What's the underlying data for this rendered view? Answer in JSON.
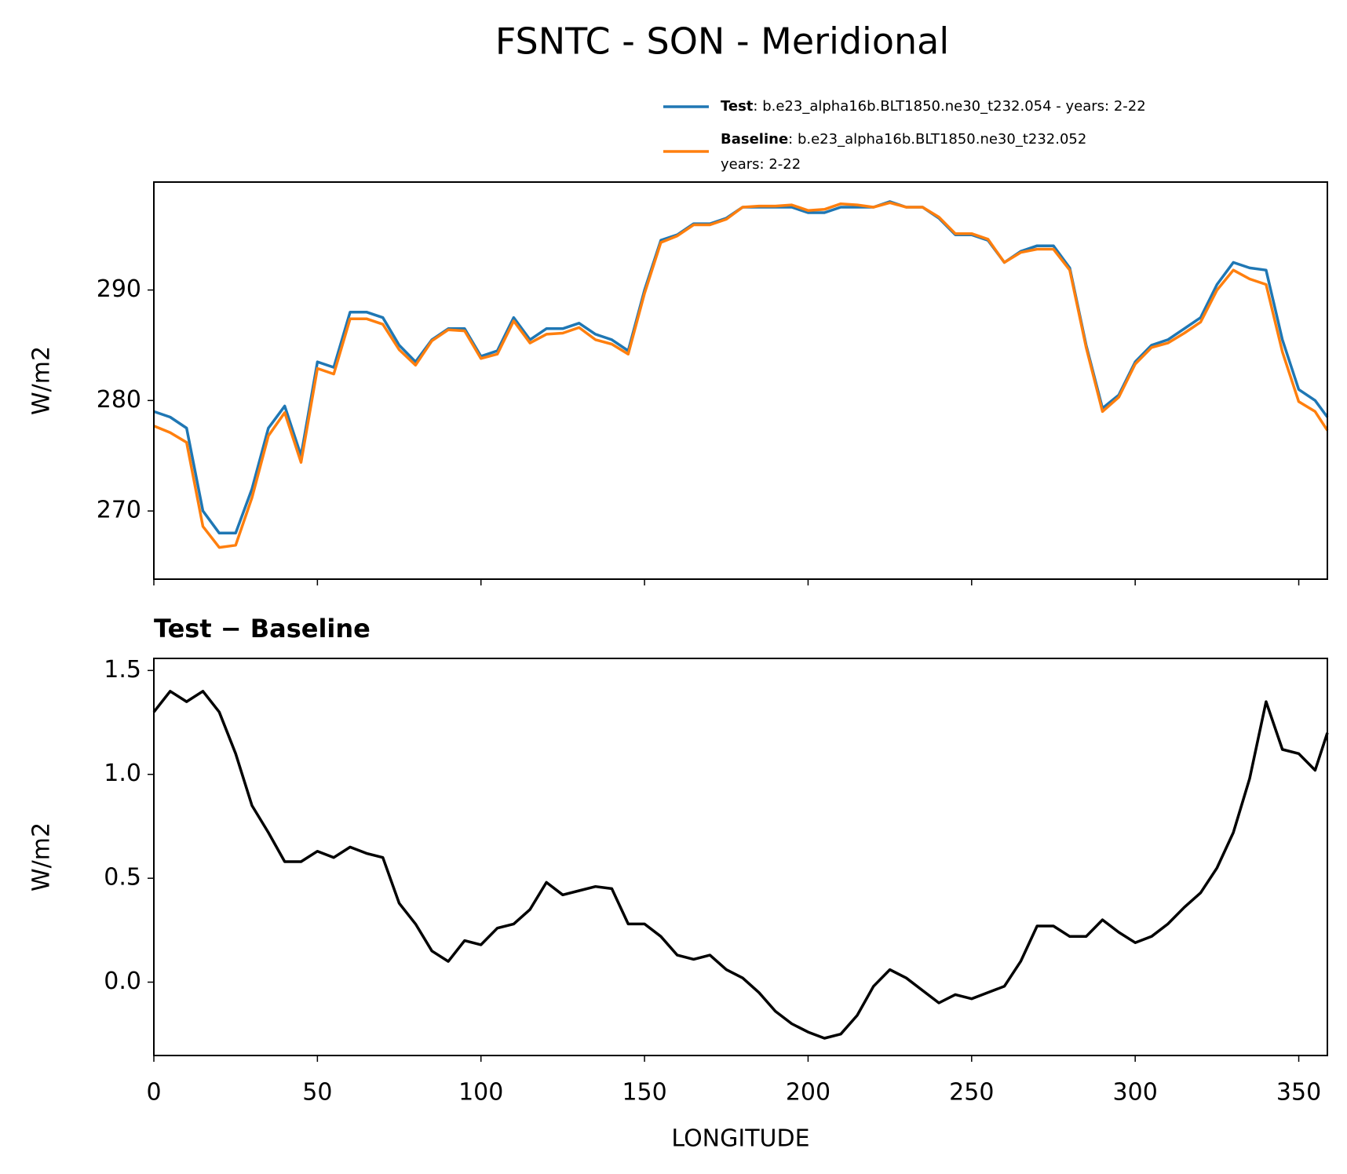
{
  "chart_data": [
    {
      "type": "line",
      "title": "FSNTC - SON - Meridional",
      "ylabel": "W/m2",
      "x": [
        0,
        5,
        10,
        15,
        20,
        25,
        30,
        35,
        40,
        45,
        50,
        55,
        60,
        65,
        70,
        75,
        80,
        85,
        90,
        95,
        100,
        105,
        110,
        115,
        120,
        125,
        130,
        135,
        140,
        145,
        150,
        155,
        160,
        165,
        170,
        175,
        180,
        185,
        190,
        195,
        200,
        205,
        210,
        215,
        220,
        225,
        230,
        235,
        240,
        245,
        250,
        255,
        260,
        265,
        270,
        275,
        280,
        285,
        290,
        295,
        300,
        305,
        310,
        315,
        320,
        325,
        330,
        335,
        340,
        345,
        350,
        355,
        358.75
      ],
      "series": [
        {
          "name": "Test",
          "description": [
            ": b.e23_alpha16b.BLT1850.ne30_t232.054 - years: 2-22"
          ],
          "color": "#1f77b4",
          "values": [
            279.0,
            278.5,
            277.5,
            270,
            268,
            268,
            272,
            277.5,
            279.5,
            275,
            283.5,
            283,
            288,
            288,
            287.5,
            285,
            283.5,
            285.5,
            286.5,
            286.5,
            284,
            284.5,
            287.5,
            285.5,
            286.5,
            286.5,
            287,
            286,
            285.5,
            284.5,
            290,
            294.5,
            295,
            296,
            296,
            296.5,
            297.5,
            297.5,
            297.5,
            297.5,
            297,
            297,
            297.5,
            297.5,
            297.5,
            298,
            297.5,
            297.5,
            296.5,
            295,
            295,
            294.5,
            292.5,
            293.5,
            294,
            294,
            292,
            285,
            279.3,
            280.5,
            283.5,
            285,
            285.5,
            286.5,
            287.5,
            290.5,
            292.5,
            292,
            291.8,
            285.5,
            281,
            280,
            278.5
          ]
        },
        {
          "name": "Baseline",
          "description": [
            ": b.e23_alpha16b.BLT1850.ne30_t232.052",
            "years: 2-22"
          ],
          "color": "#ff7f0e",
          "values": [
            277.7,
            277.1,
            276.2,
            268.6,
            266.7,
            266.9,
            271.2,
            276.8,
            278.9,
            274.4,
            282.9,
            282.4,
            287.4,
            287.4,
            286.9,
            284.6,
            283.2,
            285.4,
            286.4,
            286.3,
            283.8,
            284.2,
            287.2,
            285.2,
            286.0,
            286.1,
            286.6,
            285.5,
            285.1,
            284.2,
            289.7,
            294.3,
            294.9,
            295.9,
            295.9,
            296.4,
            297.5,
            297.6,
            297.6,
            297.7,
            297.2,
            297.3,
            297.8,
            297.7,
            297.5,
            297.9,
            297.5,
            297.5,
            296.6,
            295.1,
            295.1,
            294.6,
            292.5,
            293.4,
            293.7,
            293.7,
            291.8,
            284.8,
            279.0,
            280.3,
            283.3,
            284.8,
            285.2,
            286.1,
            287.1,
            290.0,
            291.8,
            291.0,
            290.5,
            284.4,
            279.9,
            279.0,
            277.3
          ]
        }
      ],
      "xlim": [
        0,
        358.75
      ],
      "xticks": [
        0,
        50,
        100,
        150,
        200,
        250,
        300,
        350
      ],
      "show_xtick_labels": false,
      "ylim": [
        263.83,
        299.77
      ],
      "yticks": [
        270,
        280,
        290
      ]
    },
    {
      "type": "line",
      "subtitle": "Test − Baseline",
      "ylabel": "W/m2",
      "xlabel": "LONGITUDE",
      "x": [
        0,
        5,
        10,
        15,
        20,
        25,
        30,
        35,
        40,
        45,
        50,
        55,
        60,
        65,
        70,
        75,
        80,
        85,
        90,
        95,
        100,
        105,
        110,
        115,
        120,
        125,
        130,
        135,
        140,
        145,
        150,
        155,
        160,
        165,
        170,
        175,
        180,
        185,
        190,
        195,
        200,
        205,
        210,
        215,
        220,
        225,
        230,
        235,
        240,
        245,
        250,
        255,
        260,
        265,
        270,
        275,
        280,
        285,
        290,
        295,
        300,
        305,
        310,
        315,
        320,
        325,
        330,
        335,
        340,
        345,
        350,
        355,
        358.75
      ],
      "series": [
        {
          "color": "#000000",
          "values": [
            1.3,
            1.4,
            1.35,
            1.4,
            1.3,
            1.1,
            0.85,
            0.72,
            0.58,
            0.58,
            0.63,
            0.6,
            0.65,
            0.62,
            0.6,
            0.38,
            0.28,
            0.15,
            0.1,
            0.2,
            0.18,
            0.26,
            0.28,
            0.35,
            0.48,
            0.42,
            0.44,
            0.46,
            0.45,
            0.28,
            0.28,
            0.22,
            0.13,
            0.11,
            0.13,
            0.06,
            0.02,
            -0.05,
            -0.14,
            -0.2,
            -0.24,
            -0.27,
            -0.25,
            -0.16,
            -0.02,
            0.06,
            0.02,
            -0.04,
            -0.1,
            -0.06,
            -0.08,
            -0.05,
            -0.02,
            0.1,
            0.27,
            0.27,
            0.22,
            0.22,
            0.3,
            0.24,
            0.19,
            0.22,
            0.28,
            0.36,
            0.43,
            0.55,
            0.72,
            0.98,
            1.35,
            1.12,
            1.1,
            1.02,
            1.2
          ]
        }
      ],
      "xlim": [
        0,
        358.75
      ],
      "xticks": [
        0,
        50,
        100,
        150,
        200,
        250,
        300,
        350
      ],
      "show_xtick_labels": true,
      "ylim": [
        -0.353,
        1.558
      ],
      "yticks": [
        {
          "value": 0,
          "label": "0.0"
        },
        0.5,
        {
          "value": 1,
          "label": "1.0"
        },
        1.5
      ]
    }
  ]
}
